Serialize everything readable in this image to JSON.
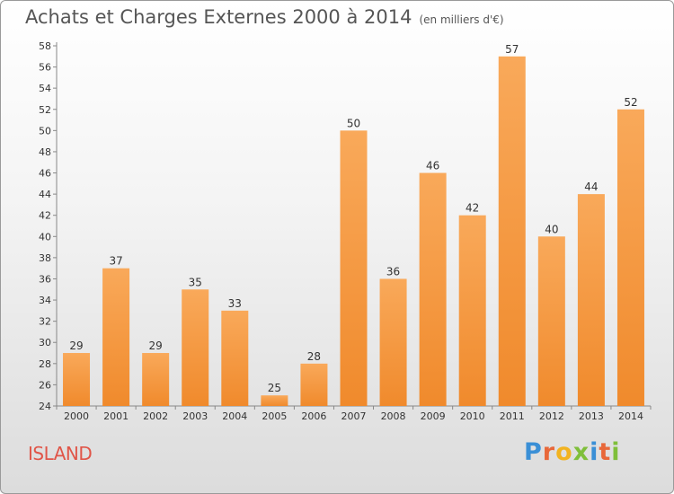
{
  "chart_data": {
    "type": "bar",
    "title": "Achats et Charges Externes 2000 à 2014",
    "subtitle": "(en milliers d'€)",
    "categories": [
      "2000",
      "2001",
      "2002",
      "2003",
      "2004",
      "2005",
      "2006",
      "2007",
      "2008",
      "2009",
      "2010",
      "2011",
      "2012",
      "2013",
      "2014"
    ],
    "values": [
      29,
      37,
      29,
      35,
      33,
      25,
      28,
      50,
      36,
      46,
      42,
      57,
      40,
      44,
      52
    ],
    "ylim": [
      24,
      58
    ],
    "yticks": [
      24,
      26,
      28,
      30,
      32,
      34,
      36,
      38,
      40,
      42,
      44,
      46,
      48,
      50,
      52,
      54,
      56,
      58
    ],
    "grid": false,
    "bar_color": "#f08a2c",
    "bar_light_color": "#f9a95a"
  },
  "commune": "ISLAND",
  "logo": {
    "text": "Proxiti",
    "letters": [
      {
        "ch": "P",
        "color": "#3a8fd6"
      },
      {
        "ch": "r",
        "color": "#e8683a"
      },
      {
        "ch": "o",
        "color": "#f2b320"
      },
      {
        "ch": "x",
        "color": "#7fbf3a"
      },
      {
        "ch": "i",
        "color": "#3a8fd6"
      },
      {
        "ch": "t",
        "color": "#e8683a"
      },
      {
        "ch": "i",
        "color": "#7fbf3a"
      }
    ]
  }
}
